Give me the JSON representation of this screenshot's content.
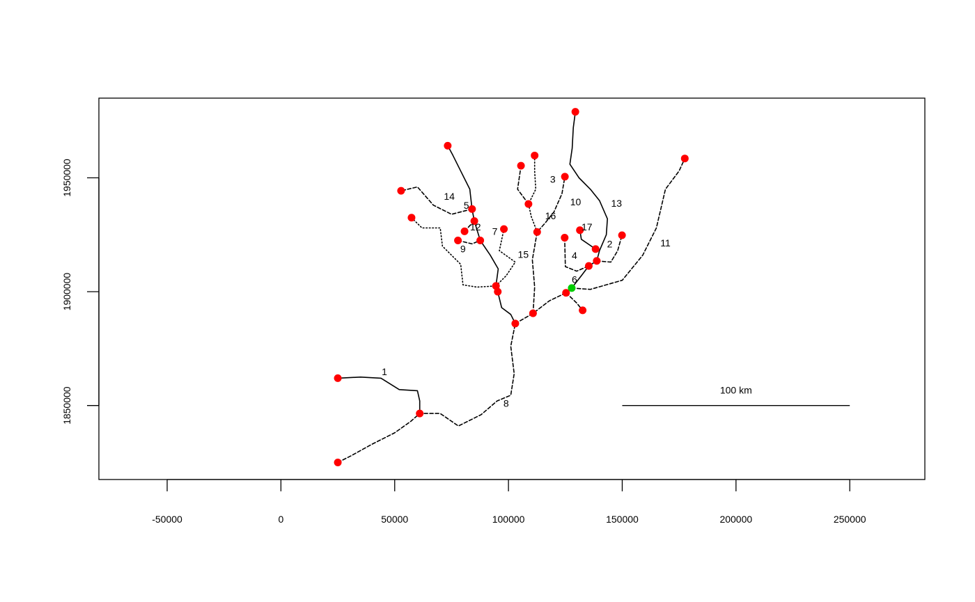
{
  "chart_data": {
    "type": "map",
    "title": "",
    "xlabel": "",
    "ylabel": "",
    "xlim": [
      -80000,
      283000
    ],
    "ylim": [
      1817500,
      1985000
    ],
    "grid": false,
    "legend": "none",
    "x_ticks": [
      -50000,
      0,
      50000,
      100000,
      150000,
      200000,
      250000
    ],
    "x_tick_labels": [
      "-50000",
      "0",
      "50000",
      "100000",
      "150000",
      "200000",
      "250000"
    ],
    "y_ticks": [
      1850000,
      1900000,
      1950000
    ],
    "y_tick_labels": [
      "1850000",
      "1900000",
      "1950000"
    ],
    "colors": {
      "site": "#ff0000",
      "outlet": "#00cc00",
      "line": "#000000"
    },
    "scale_bar": {
      "x0": 150000,
      "x1": 250000,
      "y": 1850000,
      "label": "100 km"
    },
    "outlet": {
      "x": 127800,
      "y": 1901600
    },
    "sites": [
      [
        25000,
        1862000
      ],
      [
        61000,
        1846500
      ],
      [
        25000,
        1825000
      ],
      [
        103000,
        1886000
      ],
      [
        110800,
        1890500
      ],
      [
        125300,
        1899500
      ],
      [
        132600,
        1891800
      ],
      [
        94500,
        1902500
      ],
      [
        95300,
        1900000
      ],
      [
        87600,
        1922500
      ],
      [
        77800,
        1922500
      ],
      [
        80700,
        1926500
      ],
      [
        85000,
        1931000
      ],
      [
        84000,
        1936300
      ],
      [
        57400,
        1932500
      ],
      [
        52800,
        1944300
      ],
      [
        73300,
        1964100
      ],
      [
        98000,
        1927500
      ],
      [
        112600,
        1926200
      ],
      [
        108800,
        1938500
      ],
      [
        105500,
        1955300
      ],
      [
        111500,
        1959800
      ],
      [
        124800,
        1950500
      ],
      [
        129400,
        1979000
      ],
      [
        124700,
        1923700
      ],
      [
        131400,
        1927000
      ],
      [
        138300,
        1918700
      ],
      [
        138800,
        1913500
      ],
      [
        135300,
        1911300
      ],
      [
        149900,
        1924800
      ],
      [
        177500,
        1958500
      ]
    ],
    "reach_labels": [
      {
        "text": "1",
        "x": 45500,
        "y": 1864500
      },
      {
        "text": "2",
        "x": 144500,
        "y": 1920500
      },
      {
        "text": "3",
        "x": 119500,
        "y": 1949000
      },
      {
        "text": "4",
        "x": 129000,
        "y": 1915500
      },
      {
        "text": "5",
        "x": 81500,
        "y": 1937500
      },
      {
        "text": "6",
        "x": 129000,
        "y": 1905000
      },
      {
        "text": "7",
        "x": 94000,
        "y": 1926000
      },
      {
        "text": "8",
        "x": 99000,
        "y": 1850500
      },
      {
        "text": "9",
        "x": 80000,
        "y": 1918500
      },
      {
        "text": "10",
        "x": 129500,
        "y": 1939000
      },
      {
        "text": "11",
        "x": 169000,
        "y": 1921000
      },
      {
        "text": "12",
        "x": 85500,
        "y": 1928000
      },
      {
        "text": "13",
        "x": 147500,
        "y": 1938500
      },
      {
        "text": "14",
        "x": 74000,
        "y": 1941500
      },
      {
        "text": "15",
        "x": 106500,
        "y": 1916000
      },
      {
        "text": "16",
        "x": 118500,
        "y": 1933000
      },
      {
        "text": "17",
        "x": 134500,
        "y": 1928000
      }
    ],
    "reaches": [
      {
        "dash": "solid",
        "points": [
          [
            25000,
            1862000
          ],
          [
            35000,
            1862500
          ],
          [
            44000,
            1862000
          ],
          [
            52000,
            1857000
          ],
          [
            60000,
            1856500
          ],
          [
            61000,
            1852000
          ],
          [
            61000,
            1846500
          ]
        ]
      },
      {
        "dash": "dashed",
        "points": [
          [
            25000,
            1825000
          ],
          [
            31000,
            1828000
          ],
          [
            40000,
            1833000
          ],
          [
            50000,
            1838000
          ],
          [
            57000,
            1843000
          ],
          [
            61000,
            1846500
          ],
          [
            70000,
            1846500
          ],
          [
            78000,
            1841000
          ],
          [
            88000,
            1846000
          ],
          [
            95000,
            1852000
          ],
          [
            101000,
            1854500
          ],
          [
            102500,
            1864000
          ],
          [
            101000,
            1876000
          ],
          [
            103000,
            1886000
          ]
        ]
      },
      {
        "dash": "dashed",
        "points": [
          [
            103000,
            1886000
          ],
          [
            110800,
            1890500
          ],
          [
            118000,
            1896000
          ],
          [
            125300,
            1899500
          ],
          [
            127800,
            1901600
          ],
          [
            136000,
            1901000
          ],
          [
            150000,
            1905000
          ],
          [
            159000,
            1916000
          ],
          [
            165000,
            1928000
          ],
          [
            169000,
            1945000
          ],
          [
            175000,
            1953000
          ],
          [
            177500,
            1958500
          ]
        ]
      },
      {
        "dash": "solid",
        "points": [
          [
            103000,
            1886000
          ],
          [
            101000,
            1890000
          ],
          [
            97000,
            1893000
          ],
          [
            95300,
            1900000
          ],
          [
            94500,
            1902500
          ],
          [
            95500,
            1910000
          ],
          [
            92000,
            1916000
          ],
          [
            87600,
            1922500
          ],
          [
            85000,
            1931000
          ],
          [
            84000,
            1936300
          ],
          [
            83000,
            1945000
          ],
          [
            79000,
            1953000
          ],
          [
            75500,
            1960000
          ],
          [
            73300,
            1964100
          ]
        ]
      },
      {
        "dash": "dashed",
        "points": [
          [
            84000,
            1936300
          ],
          [
            75000,
            1934000
          ],
          [
            67000,
            1938000
          ],
          [
            60000,
            1946000
          ],
          [
            52800,
            1944300
          ]
        ]
      },
      {
        "dash": "dotted",
        "points": [
          [
            57400,
            1932500
          ],
          [
            62000,
            1928000
          ],
          [
            70000,
            1928000
          ],
          [
            71000,
            1920000
          ],
          [
            79000,
            1912000
          ],
          [
            80000,
            1903000
          ],
          [
            86000,
            1902000
          ],
          [
            94500,
            1902500
          ]
        ]
      },
      {
        "dash": "dotted",
        "points": [
          [
            94500,
            1902500
          ],
          [
            99000,
            1907000
          ],
          [
            103000,
            1913000
          ],
          [
            96000,
            1918000
          ],
          [
            98000,
            1927500
          ]
        ]
      },
      {
        "dash": "dashed",
        "points": [
          [
            77800,
            1922500
          ],
          [
            84000,
            1921000
          ],
          [
            87600,
            1922500
          ]
        ]
      },
      {
        "dash": "dashed",
        "points": [
          [
            80700,
            1926500
          ],
          [
            83000,
            1929000
          ],
          [
            85000,
            1931000
          ]
        ]
      },
      {
        "dash": "dashed",
        "points": [
          [
            110800,
            1890500
          ],
          [
            111500,
            1902000
          ],
          [
            110500,
            1914000
          ],
          [
            112600,
            1926200
          ],
          [
            116000,
            1930000
          ],
          [
            120000,
            1935000
          ],
          [
            123500,
            1943000
          ],
          [
            124800,
            1950500
          ]
        ]
      },
      {
        "dash": "dotted",
        "points": [
          [
            112600,
            1926200
          ],
          [
            110000,
            1933000
          ],
          [
            108800,
            1938500
          ],
          [
            112000,
            1945000
          ],
          [
            111500,
            1953000
          ],
          [
            111500,
            1959800
          ]
        ]
      },
      {
        "dash": "dashed",
        "points": [
          [
            108800,
            1938500
          ],
          [
            104000,
            1945000
          ],
          [
            105500,
            1955300
          ]
        ]
      },
      {
        "dash": "solid",
        "points": [
          [
            127800,
            1901600
          ],
          [
            132000,
            1907000
          ],
          [
            135300,
            1911300
          ],
          [
            138800,
            1913500
          ],
          [
            140000,
            1918000
          ],
          [
            143000,
            1925000
          ],
          [
            143500,
            1932000
          ],
          [
            140000,
            1940000
          ],
          [
            136000,
            1945000
          ],
          [
            131000,
            1950000
          ],
          [
            127000,
            1956000
          ],
          [
            128000,
            1963000
          ],
          [
            128500,
            1972000
          ],
          [
            129400,
            1979000
          ]
        ]
      },
      {
        "dash": "dashed",
        "points": [
          [
            125300,
            1899500
          ],
          [
            130000,
            1895000
          ],
          [
            132600,
            1891800
          ]
        ]
      },
      {
        "dash": "dashed",
        "points": [
          [
            124700,
            1923700
          ],
          [
            125000,
            1911000
          ],
          [
            130000,
            1909000
          ],
          [
            135300,
            1911300
          ]
        ]
      },
      {
        "dash": "solid",
        "points": [
          [
            131400,
            1927000
          ],
          [
            132000,
            1923000
          ],
          [
            138300,
            1918700
          ]
        ]
      },
      {
        "dash": "dashed",
        "points": [
          [
            138800,
            1913500
          ],
          [
            145000,
            1913000
          ],
          [
            148000,
            1918000
          ],
          [
            149900,
            1924800
          ]
        ]
      }
    ]
  }
}
